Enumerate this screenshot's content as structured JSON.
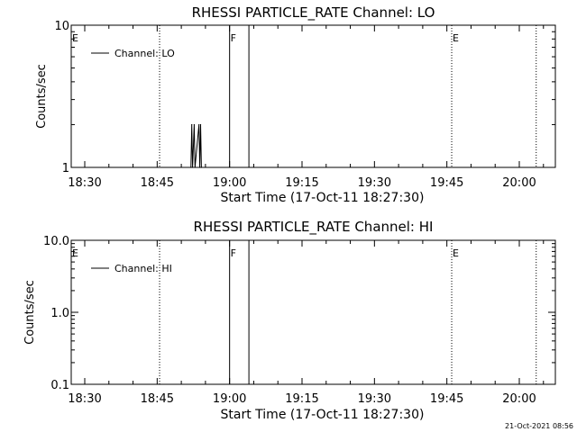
{
  "footer_timestamp": "21-Oct-2021 08:56",
  "chart_data": [
    {
      "type": "line",
      "title": "RHESSI PARTICLE_RATE Channel: LO",
      "xlabel": "Start Time (17-Oct-11 18:27:30)",
      "ylabel": "Counts/sec",
      "x_tick_labels": [
        "18:30",
        "18:45",
        "19:00",
        "19:15",
        "19:30",
        "19:45",
        "20:00"
      ],
      "y_scale": "log",
      "y_tick_labels": [
        "1",
        "10"
      ],
      "ylim": [
        1,
        10
      ],
      "legend": {
        "entries": [
          "Channel: LO"
        ],
        "position": "top-left"
      },
      "series": [
        {
          "name": "Channel: LO",
          "points": [
            {
              "x": "18:52:00",
              "y": 1
            },
            {
              "x": "18:52:10",
              "y": 2
            },
            {
              "x": "18:52:20",
              "y": 1
            },
            {
              "x": "18:52:40",
              "y": 2
            },
            {
              "x": "18:52:50",
              "y": 1
            },
            {
              "x": "18:53:40",
              "y": 2
            },
            {
              "x": "18:53:50",
              "y": 1
            },
            {
              "x": "18:54:00",
              "y": 2
            },
            {
              "x": "18:54:10",
              "y": 1
            }
          ]
        }
      ],
      "markers": [
        {
          "time": "18:45:30",
          "label": "E",
          "style": "dotted"
        },
        {
          "time": "19:00:00",
          "label": "F",
          "style": "solid"
        },
        {
          "time": "19:04:00",
          "label": "",
          "style": "solid"
        },
        {
          "time": "19:46:00",
          "label": "E",
          "style": "dotted"
        },
        {
          "time": "20:03:30",
          "label": "",
          "style": "dotted"
        }
      ]
    },
    {
      "type": "line",
      "title": "RHESSI PARTICLE_RATE Channel: HI",
      "xlabel": "Start Time (17-Oct-11 18:27:30)",
      "ylabel": "Counts/sec",
      "x_tick_labels": [
        "18:30",
        "18:45",
        "19:00",
        "19:15",
        "19:30",
        "19:45",
        "20:00"
      ],
      "y_scale": "log",
      "y_tick_labels": [
        "0.1",
        "1.0",
        "10.0"
      ],
      "ylim": [
        0.1,
        10
      ],
      "legend": {
        "entries": [
          "Channel: HI"
        ],
        "position": "top-left"
      },
      "series": [
        {
          "name": "Channel: HI",
          "points": []
        }
      ],
      "markers": [
        {
          "time": "18:45:30",
          "label": "E",
          "style": "dotted"
        },
        {
          "time": "19:00:00",
          "label": "F",
          "style": "solid"
        },
        {
          "time": "19:04:00",
          "label": "",
          "style": "solid"
        },
        {
          "time": "19:46:00",
          "label": "E",
          "style": "dotted"
        },
        {
          "time": "20:03:30",
          "label": "",
          "style": "dotted"
        }
      ]
    }
  ]
}
